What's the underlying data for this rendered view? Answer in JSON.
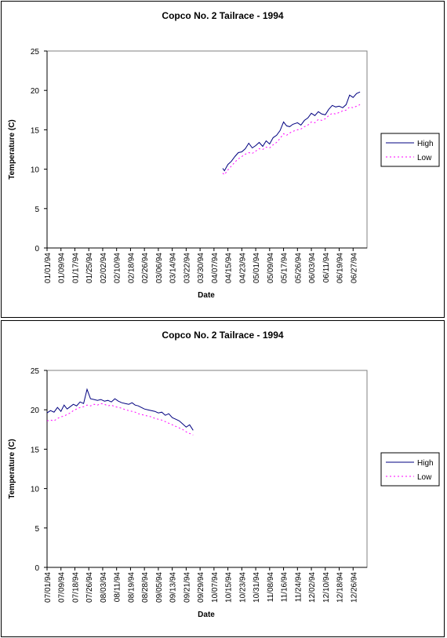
{
  "chart_data": [
    {
      "type": "line",
      "title": "Copco No. 2 Tailrace - 1994",
      "xlabel": "Date",
      "ylabel": "Temperature (C)",
      "ylim": [
        0,
        25
      ],
      "yticks": [
        0,
        5,
        10,
        15,
        20,
        25
      ],
      "x_tick_labels": [
        "01/01/94",
        "01/09/94",
        "01/17/94",
        "01/25/94",
        "02/02/94",
        "02/10/94",
        "02/18/94",
        "02/26/94",
        "03/06/94",
        "03/14/94",
        "03/22/94",
        "03/30/94",
        "04/07/94",
        "04/15/94",
        "04/23/94",
        "05/01/94",
        "05/09/94",
        "05/17/94",
        "05/26/94",
        "06/03/94",
        "06/11/94",
        "06/19/94",
        "06/27/94"
      ],
      "grid": false,
      "legend_position": "right",
      "series": [
        {
          "name": "High",
          "color": "#000080",
          "dash": "solid",
          "x": [
            "04/12/94",
            "04/13/94",
            "04/15/94",
            "04/17/94",
            "04/19/94",
            "04/21/94",
            "04/23/94",
            "04/25/94",
            "04/27/94",
            "04/29/94",
            "05/01/94",
            "05/03/94",
            "05/05/94",
            "05/07/94",
            "05/09/94",
            "05/11/94",
            "05/13/94",
            "05/15/94",
            "05/17/94",
            "05/19/94",
            "05/21/94",
            "05/23/94",
            "05/26/94",
            "05/28/94",
            "05/30/94",
            "06/01/94",
            "06/03/94",
            "06/05/94",
            "06/07/94",
            "06/09/94",
            "06/11/94",
            "06/13/94",
            "06/15/94",
            "06/17/94",
            "06/19/94",
            "06/21/94",
            "06/23/94",
            "06/25/94",
            "06/27/94",
            "06/29/94",
            "07/01/94"
          ],
          "values": [
            10.1,
            9.8,
            10.6,
            11.0,
            11.6,
            12.1,
            12.2,
            12.6,
            13.3,
            12.7,
            13.0,
            13.4,
            12.9,
            13.6,
            13.2,
            14.0,
            14.3,
            14.9,
            16.0,
            15.5,
            15.4,
            15.7,
            15.9,
            15.6,
            16.2,
            16.5,
            17.1,
            16.8,
            17.3,
            17.0,
            16.9,
            17.6,
            18.1,
            17.9,
            18.0,
            17.8,
            18.2,
            19.4,
            19.1,
            19.6,
            19.8
          ]
        },
        {
          "name": "Low",
          "color": "#FF00FF",
          "dash": "dotted",
          "x": [
            "04/12/94",
            "04/13/94",
            "04/15/94",
            "04/17/94",
            "04/19/94",
            "04/21/94",
            "04/23/94",
            "04/25/94",
            "04/27/94",
            "04/29/94",
            "05/01/94",
            "05/03/94",
            "05/05/94",
            "05/07/94",
            "05/09/94",
            "05/11/94",
            "05/13/94",
            "05/15/94",
            "05/17/94",
            "05/19/94",
            "05/21/94",
            "05/23/94",
            "05/26/94",
            "05/28/94",
            "05/30/94",
            "06/01/94",
            "06/03/94",
            "06/05/94",
            "06/07/94",
            "06/09/94",
            "06/11/94",
            "06/13/94",
            "06/15/94",
            "06/17/94",
            "06/19/94",
            "06/21/94",
            "06/23/94",
            "06/25/94",
            "06/27/94",
            "06/29/94",
            "07/01/94"
          ],
          "values": [
            9.5,
            9.3,
            9.9,
            10.4,
            10.9,
            11.3,
            11.6,
            11.9,
            12.1,
            12.0,
            12.3,
            12.6,
            12.5,
            12.8,
            12.7,
            13.1,
            13.4,
            13.9,
            14.5,
            14.3,
            14.6,
            14.8,
            15.0,
            15.1,
            15.4,
            15.6,
            16.0,
            15.9,
            16.3,
            16.2,
            16.4,
            16.8,
            17.1,
            17.0,
            17.2,
            17.4,
            17.5,
            17.9,
            17.8,
            18.0,
            18.2
          ]
        }
      ]
    },
    {
      "type": "line",
      "title": "Copco No. 2 Tailrace - 1994",
      "xlabel": "Date",
      "ylabel": "Temperature (C)",
      "ylim": [
        0,
        25
      ],
      "yticks": [
        0,
        5,
        10,
        15,
        20,
        25
      ],
      "x_tick_labels": [
        "07/01/94",
        "07/09/94",
        "07/18/94",
        "07/26/94",
        "08/03/94",
        "08/11/94",
        "08/19/94",
        "08/28/94",
        "09/05/94",
        "09/13/94",
        "09/21/94",
        "09/29/94",
        "10/07/94",
        "10/15/94",
        "10/23/94",
        "10/31/94",
        "11/08/94",
        "11/16/94",
        "11/24/94",
        "12/02/94",
        "12/10/94",
        "12/18/94",
        "12/26/94"
      ],
      "grid": false,
      "legend_position": "right",
      "series": [
        {
          "name": "High",
          "color": "#000080",
          "dash": "solid",
          "x": [
            "07/01/94",
            "07/03/94",
            "07/05/94",
            "07/07/94",
            "07/09/94",
            "07/11/94",
            "07/13/94",
            "07/15/94",
            "07/17/94",
            "07/19/94",
            "07/21/94",
            "07/23/94",
            "07/25/94",
            "07/27/94",
            "07/29/94",
            "07/31/94",
            "08/02/94",
            "08/04/94",
            "08/06/94",
            "08/08/94",
            "08/10/94",
            "08/12/94",
            "08/14/94",
            "08/16/94",
            "08/18/94",
            "08/20/94",
            "08/22/94",
            "08/24/94",
            "08/26/94",
            "08/28/94",
            "08/30/94",
            "09/01/94",
            "09/03/94",
            "09/05/94",
            "09/07/94",
            "09/09/94",
            "09/11/94",
            "09/13/94",
            "09/15/94",
            "09/17/94",
            "09/19/94",
            "09/21/94",
            "09/23/94",
            "09/25/94"
          ],
          "values": [
            19.6,
            19.9,
            19.7,
            20.3,
            19.8,
            20.6,
            20.1,
            20.4,
            20.7,
            20.5,
            21.0,
            20.8,
            22.6,
            21.4,
            21.3,
            21.2,
            21.3,
            21.1,
            21.2,
            21.0,
            21.4,
            21.1,
            20.9,
            20.8,
            20.7,
            20.9,
            20.6,
            20.5,
            20.3,
            20.1,
            20.0,
            19.9,
            19.8,
            19.6,
            19.7,
            19.3,
            19.5,
            19.0,
            18.8,
            18.6,
            18.2,
            17.8,
            18.1,
            17.4
          ]
        },
        {
          "name": "Low",
          "color": "#FF00FF",
          "dash": "dotted",
          "x": [
            "07/01/94",
            "07/03/94",
            "07/05/94",
            "07/07/94",
            "07/09/94",
            "07/11/94",
            "07/13/94",
            "07/15/94",
            "07/17/94",
            "07/19/94",
            "07/21/94",
            "07/23/94",
            "07/25/94",
            "07/27/94",
            "07/29/94",
            "07/31/94",
            "08/02/94",
            "08/04/94",
            "08/06/94",
            "08/08/94",
            "08/10/94",
            "08/12/94",
            "08/14/94",
            "08/16/94",
            "08/18/94",
            "08/20/94",
            "08/22/94",
            "08/24/94",
            "08/26/94",
            "08/28/94",
            "08/30/94",
            "09/01/94",
            "09/03/94",
            "09/05/94",
            "09/07/94",
            "09/09/94",
            "09/11/94",
            "09/13/94",
            "09/15/94",
            "09/17/94",
            "09/19/94",
            "09/21/94",
            "09/23/94",
            "09/25/94"
          ],
          "values": [
            18.6,
            18.7,
            18.6,
            18.9,
            19.1,
            19.2,
            19.4,
            19.6,
            19.9,
            20.1,
            20.3,
            20.4,
            20.6,
            20.5,
            20.7,
            20.6,
            20.8,
            20.7,
            20.5,
            20.6,
            20.4,
            20.3,
            20.2,
            20.0,
            19.9,
            19.8,
            19.7,
            19.5,
            19.4,
            19.3,
            19.2,
            19.1,
            18.9,
            18.8,
            18.7,
            18.5,
            18.3,
            18.1,
            17.9,
            17.7,
            17.5,
            17.2,
            17.0,
            16.8
          ]
        }
      ]
    }
  ]
}
